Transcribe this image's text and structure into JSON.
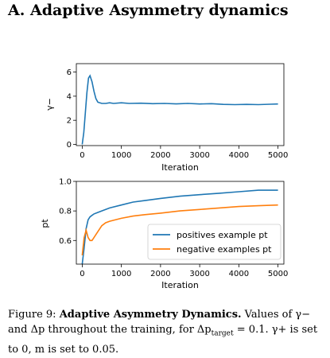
{
  "heading": "A. Adaptive Asymmetry dynamics",
  "caption": {
    "figure": "Figure 9:",
    "title": "Adaptive Asymmetry Dynamics.",
    "rest": " Values of γ− and Δp throughout the training, for Δp",
    "target_sub": "target",
    "rest2": " = 0.1. γ+ is set to 0, m is set to 0.05."
  },
  "colors": {
    "blue": "#1f77b4",
    "orange": "#ff7f0e"
  },
  "chart_data": [
    {
      "type": "line",
      "xlabel": "Iteration",
      "ylabel": "γ−",
      "xlim": [
        -150,
        5150
      ],
      "ylim": [
        -0.1,
        6.7
      ],
      "xticks": [
        0,
        1000,
        2000,
        3000,
        4000,
        5000
      ],
      "yticks": [
        0,
        2,
        4,
        6
      ],
      "grid": false,
      "series": [
        {
          "color": "#1f77b4",
          "x": [
            0,
            40,
            80,
            120,
            160,
            200,
            250,
            300,
            350,
            400,
            500,
            600,
            700,
            800,
            1000,
            1200,
            1500,
            1800,
            2100,
            2400,
            2700,
            3000,
            3300,
            3600,
            3900,
            4200,
            4500,
            4800,
            5000
          ],
          "y": [
            0.0,
            1.0,
            2.6,
            4.3,
            5.5,
            5.7,
            5.2,
            4.4,
            3.8,
            3.5,
            3.4,
            3.4,
            3.45,
            3.4,
            3.45,
            3.4,
            3.42,
            3.38,
            3.4,
            3.36,
            3.4,
            3.35,
            3.38,
            3.32,
            3.3,
            3.32,
            3.3,
            3.33,
            3.35
          ]
        }
      ]
    },
    {
      "type": "line",
      "xlabel": "Iteration",
      "ylabel": "pt",
      "xlim": [
        -150,
        5150
      ],
      "ylim": [
        0.44,
        1.0
      ],
      "xticks": [
        0,
        1000,
        2000,
        3000,
        4000,
        5000
      ],
      "yticks": [
        0.6,
        0.8,
        1.0
      ],
      "grid": false,
      "legend": "bottom-right",
      "series": [
        {
          "name": "positives example pt",
          "color": "#1f77b4",
          "x": [
            0,
            50,
            100,
            150,
            200,
            250,
            300,
            400,
            500,
            700,
            1000,
            1300,
            1600,
            2000,
            2500,
            3000,
            3500,
            4000,
            4500,
            5000
          ],
          "y": [
            0.44,
            0.55,
            0.68,
            0.74,
            0.76,
            0.77,
            0.78,
            0.79,
            0.8,
            0.82,
            0.84,
            0.86,
            0.87,
            0.885,
            0.9,
            0.91,
            0.92,
            0.93,
            0.94,
            0.94
          ]
        },
        {
          "name": "negative examples pt",
          "color": "#ff7f0e",
          "x": [
            0,
            50,
            100,
            150,
            200,
            250,
            300,
            400,
            500,
            600,
            700,
            1000,
            1300,
            1600,
            2000,
            2500,
            3000,
            3500,
            4000,
            4500,
            5000
          ],
          "y": [
            0.5,
            0.62,
            0.67,
            0.62,
            0.6,
            0.6,
            0.62,
            0.66,
            0.7,
            0.72,
            0.73,
            0.75,
            0.765,
            0.775,
            0.785,
            0.8,
            0.81,
            0.82,
            0.83,
            0.835,
            0.84
          ]
        }
      ]
    }
  ]
}
